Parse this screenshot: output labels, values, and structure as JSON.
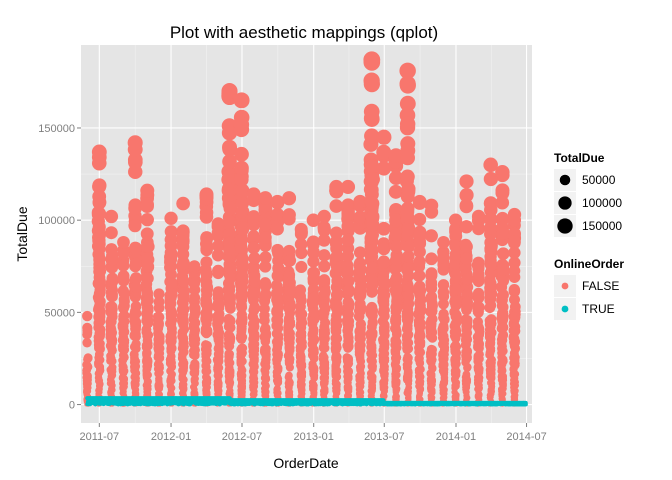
{
  "chart_data": {
    "type": "scatter",
    "title": "Plot with aesthetic mappings (qplot)",
    "xlabel": "OrderDate",
    "ylabel": "TotalDue",
    "xlim": [
      "2011-05-15",
      "2014-07-15"
    ],
    "ylim": [
      -10000,
      195000
    ],
    "x_ticks": [
      "2011-07-01",
      "2012-01-01",
      "2012-07-01",
      "2013-01-01",
      "2013-07-01",
      "2014-01-01",
      "2014-07-01"
    ],
    "x_tick_labels": [
      "2011-07",
      "2012-01",
      "2012-07",
      "2013-01",
      "2013-07",
      "2014-01",
      "2014-07"
    ],
    "y_ticks": [
      0,
      50000,
      100000,
      150000
    ],
    "y_tick_labels": [
      "0",
      "50000",
      "100000",
      "150000"
    ],
    "grid": true,
    "panel_background": "#e5e5e5",
    "grid_color": "#ffffff",
    "size_legend": {
      "title": "TotalDue",
      "entries": [
        {
          "label": "50000",
          "value": 50000
        },
        {
          "label": "100000",
          "value": 100000
        },
        {
          "label": "150000",
          "value": 150000
        }
      ]
    },
    "color_legend": {
      "title": "OnlineOrder",
      "entries": [
        {
          "label": "FALSE",
          "color": "#f8766d"
        },
        {
          "label": "TRUE",
          "color": "#00bfc4"
        }
      ]
    },
    "series": [
      {
        "name": "FALSE",
        "color": "#f8766d",
        "columns": [
          {
            "date": "2011-05-31",
            "max": 48000
          },
          {
            "date": "2011-07-01",
            "max": 137000
          },
          {
            "date": "2011-08-01",
            "max": 102000
          },
          {
            "date": "2011-09-01",
            "max": 88000
          },
          {
            "date": "2011-10-01",
            "max": 142000
          },
          {
            "date": "2011-11-01",
            "max": 116000
          },
          {
            "date": "2011-12-01",
            "max": 60000
          },
          {
            "date": "2012-01-01",
            "max": 101000
          },
          {
            "date": "2012-02-01",
            "max": 109000
          },
          {
            "date": "2012-03-01",
            "max": 75000
          },
          {
            "date": "2012-04-01",
            "max": 114000
          },
          {
            "date": "2012-05-01",
            "max": 98000
          },
          {
            "date": "2012-05-30",
            "max": 170000
          },
          {
            "date": "2012-06-30",
            "max": 165000
          },
          {
            "date": "2012-07-31",
            "max": 114000
          },
          {
            "date": "2012-08-30",
            "max": 112000
          },
          {
            "date": "2012-09-30",
            "max": 110000
          },
          {
            "date": "2012-10-30",
            "max": 112000
          },
          {
            "date": "2012-11-30",
            "max": 95000
          },
          {
            "date": "2012-12-31",
            "max": 100000
          },
          {
            "date": "2013-01-28",
            "max": 102000
          },
          {
            "date": "2013-02-28",
            "max": 118000
          },
          {
            "date": "2013-03-30",
            "max": 118000
          },
          {
            "date": "2013-04-30",
            "max": 110000
          },
          {
            "date": "2013-05-30",
            "max": 187000
          },
          {
            "date": "2013-06-30",
            "max": 145000
          },
          {
            "date": "2013-07-31",
            "max": 135000
          },
          {
            "date": "2013-08-30",
            "max": 181000
          },
          {
            "date": "2013-09-30",
            "max": 110000
          },
          {
            "date": "2013-10-30",
            "max": 108000
          },
          {
            "date": "2013-11-30",
            "max": 88000
          },
          {
            "date": "2013-12-31",
            "max": 100000
          },
          {
            "date": "2014-01-28",
            "max": 121000
          },
          {
            "date": "2014-02-28",
            "max": 102000
          },
          {
            "date": "2014-03-31",
            "max": 130000
          },
          {
            "date": "2014-04-30",
            "max": 126000
          },
          {
            "date": "2014-05-31",
            "max": 103000
          }
        ]
      },
      {
        "name": "TRUE",
        "color": "#00bfc4",
        "band": [
          {
            "from": "2011-05-31",
            "to": "2012-05-31",
            "value": 3500
          },
          {
            "from": "2012-06-01",
            "to": "2013-06-30",
            "value": 2400
          },
          {
            "from": "2013-07-01",
            "to": "2014-06-30",
            "value": 1000
          }
        ],
        "tail": {
          "from": "2014-06-01",
          "to": "2014-06-30",
          "value": 50
        }
      }
    ]
  }
}
